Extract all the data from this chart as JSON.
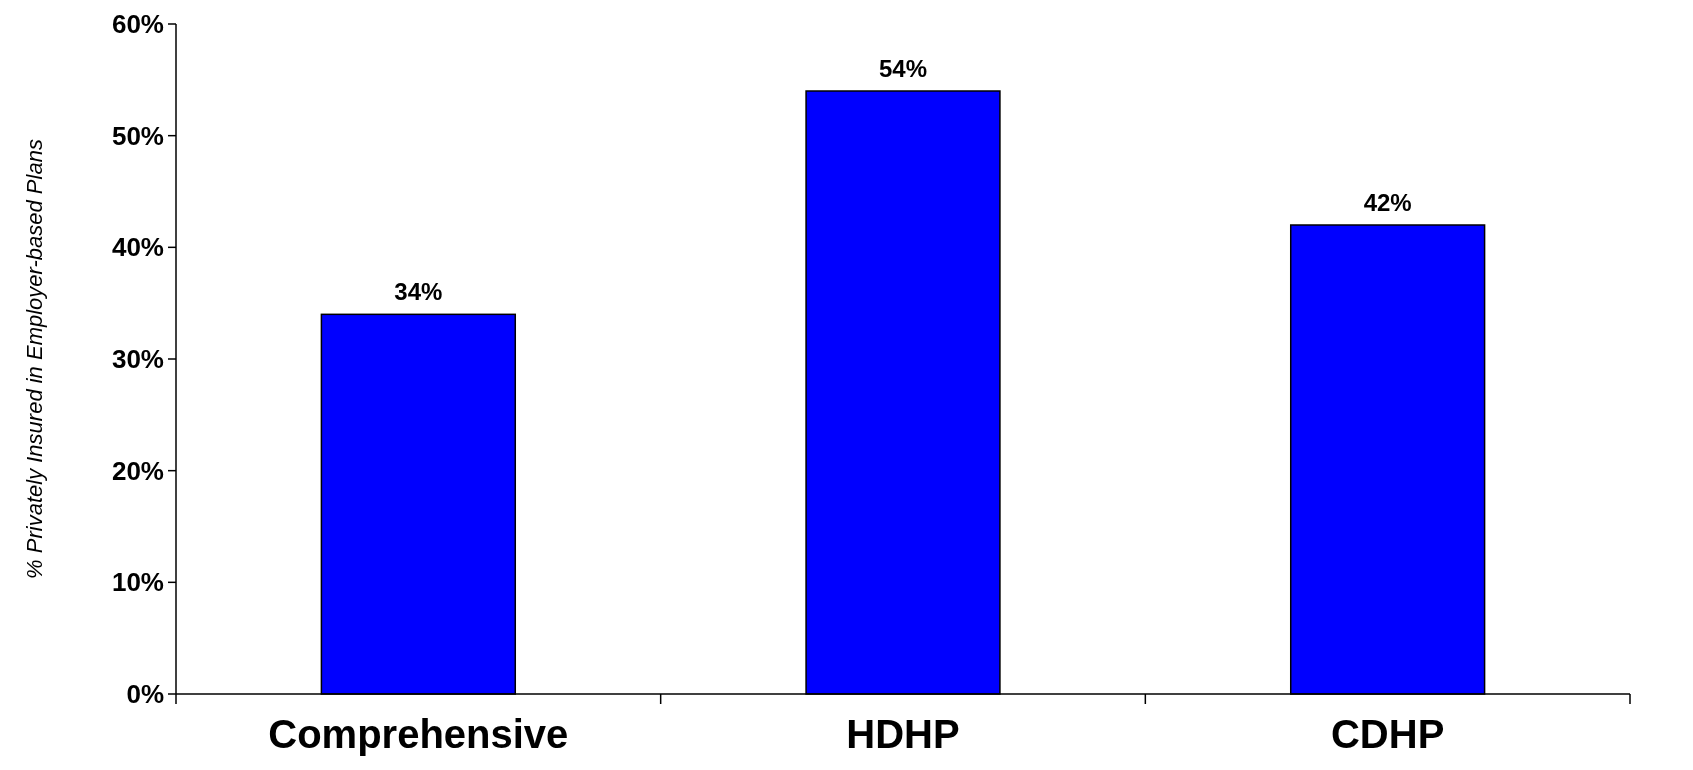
{
  "chart_data": {
    "type": "bar",
    "ylabel": "%  Privately Insured in Employer-based Plans",
    "categories": [
      "Comprehensive",
      "HDHP",
      "CDHP"
    ],
    "values": [
      34,
      54,
      42
    ],
    "color": "#0000ff",
    "ylim": [
      0,
      60
    ],
    "yticks": [
      {
        "value": 0,
        "label": "0%"
      },
      {
        "value": 10,
        "label": "10%"
      },
      {
        "value": 20,
        "label": "20%"
      },
      {
        "value": 30,
        "label": "30%"
      },
      {
        "value": 40,
        "label": "40%"
      },
      {
        "value": 50,
        "label": "50%"
      },
      {
        "value": 60,
        "label": "60%"
      }
    ],
    "value_labels": [
      "34%",
      "54%",
      "42%"
    ],
    "grid": false
  }
}
